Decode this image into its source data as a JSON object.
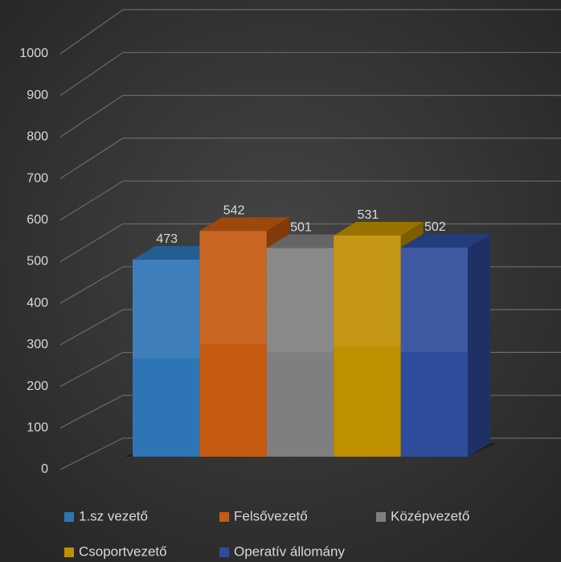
{
  "chart_data": {
    "type": "bar",
    "categories": [
      null
    ],
    "series": [
      {
        "name": "1.sz vezető",
        "color": "#2e75b6",
        "values": [
          473
        ]
      },
      {
        "name": "Felsővezető",
        "color": "#c55a11",
        "values": [
          542
        ]
      },
      {
        "name": "Középvezető",
        "color": "#7f7f7f",
        "values": [
          501
        ]
      },
      {
        "name": "Csoportvezető",
        "color": "#bf9000",
        "values": [
          531
        ]
      },
      {
        "name": "Operatív állomány",
        "color": "#2f4c9c",
        "values": [
          502
        ]
      }
    ],
    "ylim": [
      0,
      1000
    ],
    "yticks": [
      0,
      100,
      200,
      300,
      400,
      500,
      600,
      700,
      800,
      900,
      1000
    ],
    "grid": true,
    "legend": "bottom"
  }
}
